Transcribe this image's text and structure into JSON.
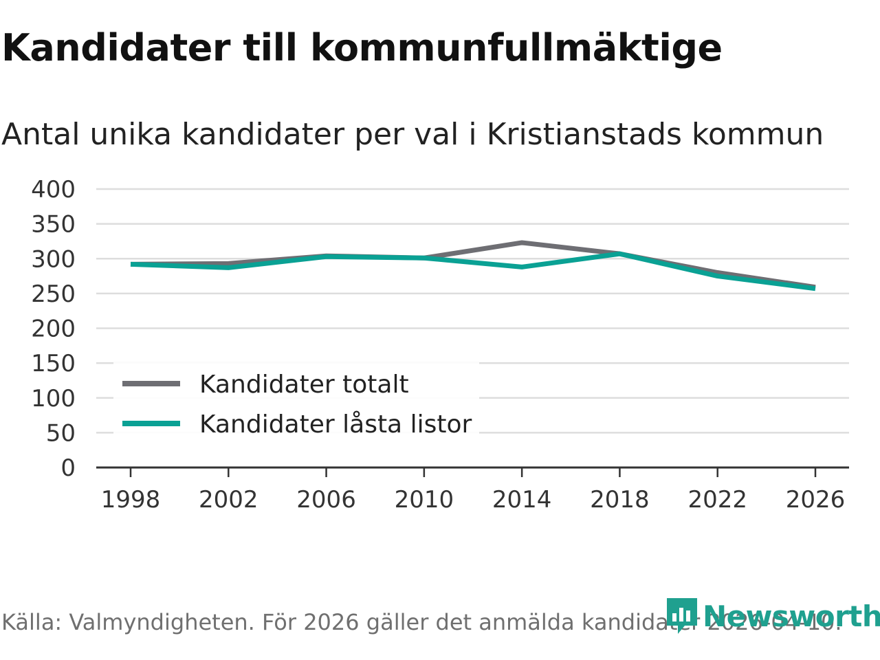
{
  "chart_data": {
    "type": "line",
    "title": "Kandidater till kommunfullmäktige",
    "subtitle": "Antal unika kandidater per val i Kristianstads kommun",
    "x": [
      "1998",
      "2002",
      "2006",
      "2010",
      "2014",
      "2018",
      "2022",
      "2026"
    ],
    "series": [
      {
        "name": "Kandidater totalt",
        "color": "#6e6e73",
        "values": [
          292,
          293,
          304,
          301,
          323,
          307,
          280,
          259
        ]
      },
      {
        "name": "Kandidater låsta listor",
        "color": "#0aa194",
        "values": [
          292,
          287,
          303,
          301,
          288,
          307,
          275,
          257
        ]
      }
    ],
    "yticks": [
      0,
      50,
      100,
      150,
      200,
      250,
      300,
      350,
      400
    ],
    "ylim": [
      0,
      400
    ],
    "grid": true,
    "legend_position": "bottom-left",
    "xlabel": "",
    "ylabel": ""
  },
  "source": "Källa: Valmyndigheten. För 2026 gäller det anmälda kandidater 2026-04-10.",
  "logo": {
    "text": "Newsworthy",
    "color": "#1fa08f"
  }
}
